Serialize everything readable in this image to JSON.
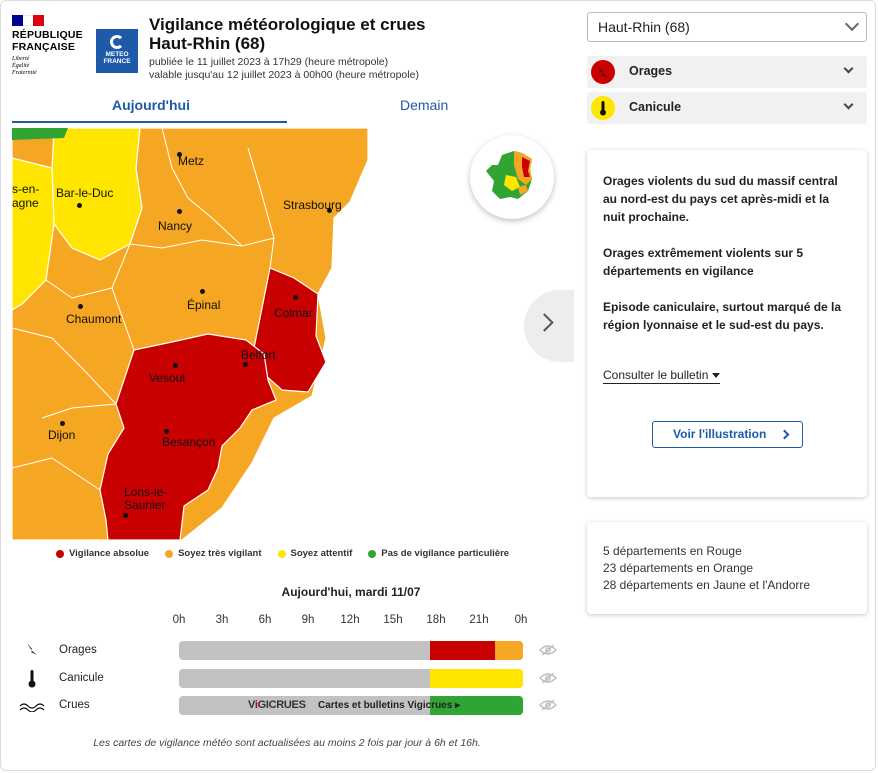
{
  "header": {
    "republique_lines": [
      "RÉPUBLIQUE",
      "FRANÇAISE"
    ],
    "motto_lines": [
      "Liberté",
      "Égalité",
      "Fraternité"
    ],
    "meteo_logo_lines": [
      "METEO",
      "FRANCE"
    ],
    "title_line1": "Vigilance météorologique et crues",
    "title_line2": "Haut-Rhin (68)",
    "published": "publiée le 11 juillet 2023 à 17h29 (heure métropole)",
    "valid": "valable jusqu'au 12 juillet 2023 à 00h00 (heure métropole)"
  },
  "tabs": {
    "today": "Aujourd'hui",
    "tomorrow": "Demain"
  },
  "map": {
    "cities": [
      "Metz",
      "s-en-",
      "agne",
      "Bar-le-Duc",
      "Strasbourg",
      "Nancy",
      "Épinal",
      "Chaumont",
      "Colmar",
      "Belfort",
      "Vesoul",
      "Dijon",
      "Besançon",
      "Lons-le-",
      "Saunier"
    ]
  },
  "legend": [
    {
      "label": "Vigilance absolue",
      "color": "#c80000"
    },
    {
      "label": "Soyez très vigilant",
      "color": "#f5a623"
    },
    {
      "label": "Soyez attentif",
      "color": "#ffe500"
    },
    {
      "label": "Pas de vigilance particulière",
      "color": "#31a533"
    }
  ],
  "timeline": {
    "title": "Aujourd'hui, mardi 11/07",
    "hours": [
      "0h",
      "3h",
      "6h",
      "9h",
      "12h",
      "15h",
      "18h",
      "21h",
      "0h"
    ],
    "rows": [
      {
        "label": "Orages",
        "icon": "lightning-icon"
      },
      {
        "label": "Canicule",
        "icon": "thermometer-icon"
      },
      {
        "label": "Crues",
        "icon": "waves-icon"
      }
    ],
    "crues_brand_v": "V",
    "crues_brand_i": "i",
    "crues_brand_rest": "GICRUES",
    "crues_link": "Cartes et bulletins Vigicrues ▸",
    "footnote": "Les cartes de vigilance météo sont actualisées au moins 2 fois par jour à 6h et 16h."
  },
  "sidebar": {
    "selected_department": "Haut-Rhin (68)",
    "accordions": [
      {
        "label": "Orages",
        "color": "#c80000"
      },
      {
        "label": "Canicule",
        "color": "#ffe500"
      }
    ],
    "bulletin_paragraphs": [
      "Orages violents du sud du massif central au nord-est du pays cet après-midi et la nuit prochaine.",
      "Orages extrêmement violents sur 5 départements en vigilance",
      "Episode caniculaire, surtout marqué de la région lyonnaise et le sud-est du pays."
    ],
    "consult_label": "Consulter le bulletin",
    "illustration_button": "Voir l'illustration",
    "stats": [
      "5 départements en Rouge",
      "23 départements en Orange",
      "28 départements en Jaune et l'Andorre"
    ]
  },
  "colors": {
    "red": "#c80000",
    "orange": "#f5a623",
    "yellow": "#ffe500",
    "green": "#31a533",
    "grey": "#c2c2c2",
    "accent": "#1d5aa8"
  }
}
